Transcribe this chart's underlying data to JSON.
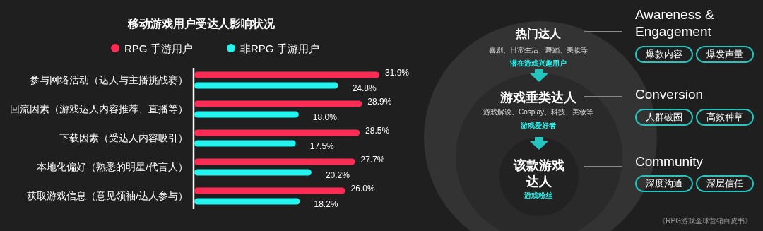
{
  "chart_data": [
    {
      "type": "bar",
      "orientation": "horizontal",
      "title": "移动游戏用户受达人影响状况",
      "legend": "top",
      "categories": [
        "参与网络活动（达人与主播挑战赛）",
        "回流因素（游戏达人内容推荐、直播等）",
        "下载因素（受达人内容吸引）",
        "本地化偏好（熟悉的明星/代言人）",
        "获取游戏信息（意见领袖/达人参与）"
      ],
      "series": [
        {
          "name": "RPG 手游用户",
          "color": "#fe2c55",
          "values": [
            31.9,
            28.9,
            28.5,
            27.7,
            26.0
          ],
          "value_labels": [
            "31.9%",
            "28.9%",
            "28.5%",
            "27.7%",
            "26.0%"
          ]
        },
        {
          "name": "非RPG 手游用户",
          "color": "#25f4ee",
          "values": [
            24.8,
            18.0,
            17.5,
            20.2,
            18.2
          ],
          "value_labels": [
            "24.8%",
            "18.0%",
            "17.5%",
            "20.2%",
            "18.2%"
          ]
        }
      ]
    },
    {
      "type": "other",
      "annotations": [
        "热门达人",
        "喜剧、日常生活、舞蹈、美妆等",
        "潜在游戏兴趣用户",
        "游戏垂类达人",
        "游戏解说、Cosplay、科技、美妆等",
        "游戏爱好者",
        "该款游戏达人",
        "游戏粉丝",
        "Awareness & Engagement",
        "爆款内容",
        "爆发声量",
        "Conversion",
        "人群破圈",
        "高效种草",
        "Community",
        "深度沟通",
        "深层信任",
        "《RPG游戏全球营销白皮书》"
      ]
    }
  ]
}
